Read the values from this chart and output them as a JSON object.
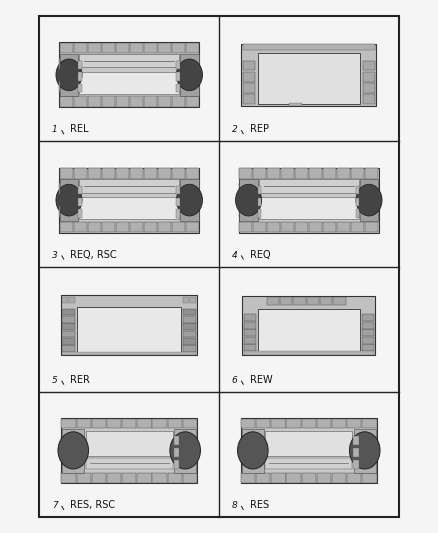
{
  "background_color": "#f5f5f5",
  "outer_border_color": "#222222",
  "cell_line_color": "#222222",
  "grid_rows": 4,
  "grid_cols": 2,
  "cells": [
    {
      "id": 1,
      "label": "REL",
      "type": "rel",
      "row": 0,
      "col": 0
    },
    {
      "id": 2,
      "label": "REP",
      "type": "rep",
      "row": 0,
      "col": 1
    },
    {
      "id": 3,
      "label": "REQ, RSC",
      "type": "req",
      "row": 1,
      "col": 0
    },
    {
      "id": 4,
      "label": "REQ",
      "type": "req",
      "row": 1,
      "col": 1
    },
    {
      "id": 5,
      "label": "RER",
      "type": "rer",
      "row": 2,
      "col": 0
    },
    {
      "id": 6,
      "label": "REW",
      "type": "rew",
      "row": 2,
      "col": 1
    },
    {
      "id": 7,
      "label": "RES, RSC",
      "type": "res",
      "row": 3,
      "col": 0
    },
    {
      "id": 8,
      "label": "RES",
      "type": "res",
      "row": 3,
      "col": 1
    }
  ],
  "L": 0.09,
  "R": 0.91,
  "B": 0.03,
  "T": 0.97
}
